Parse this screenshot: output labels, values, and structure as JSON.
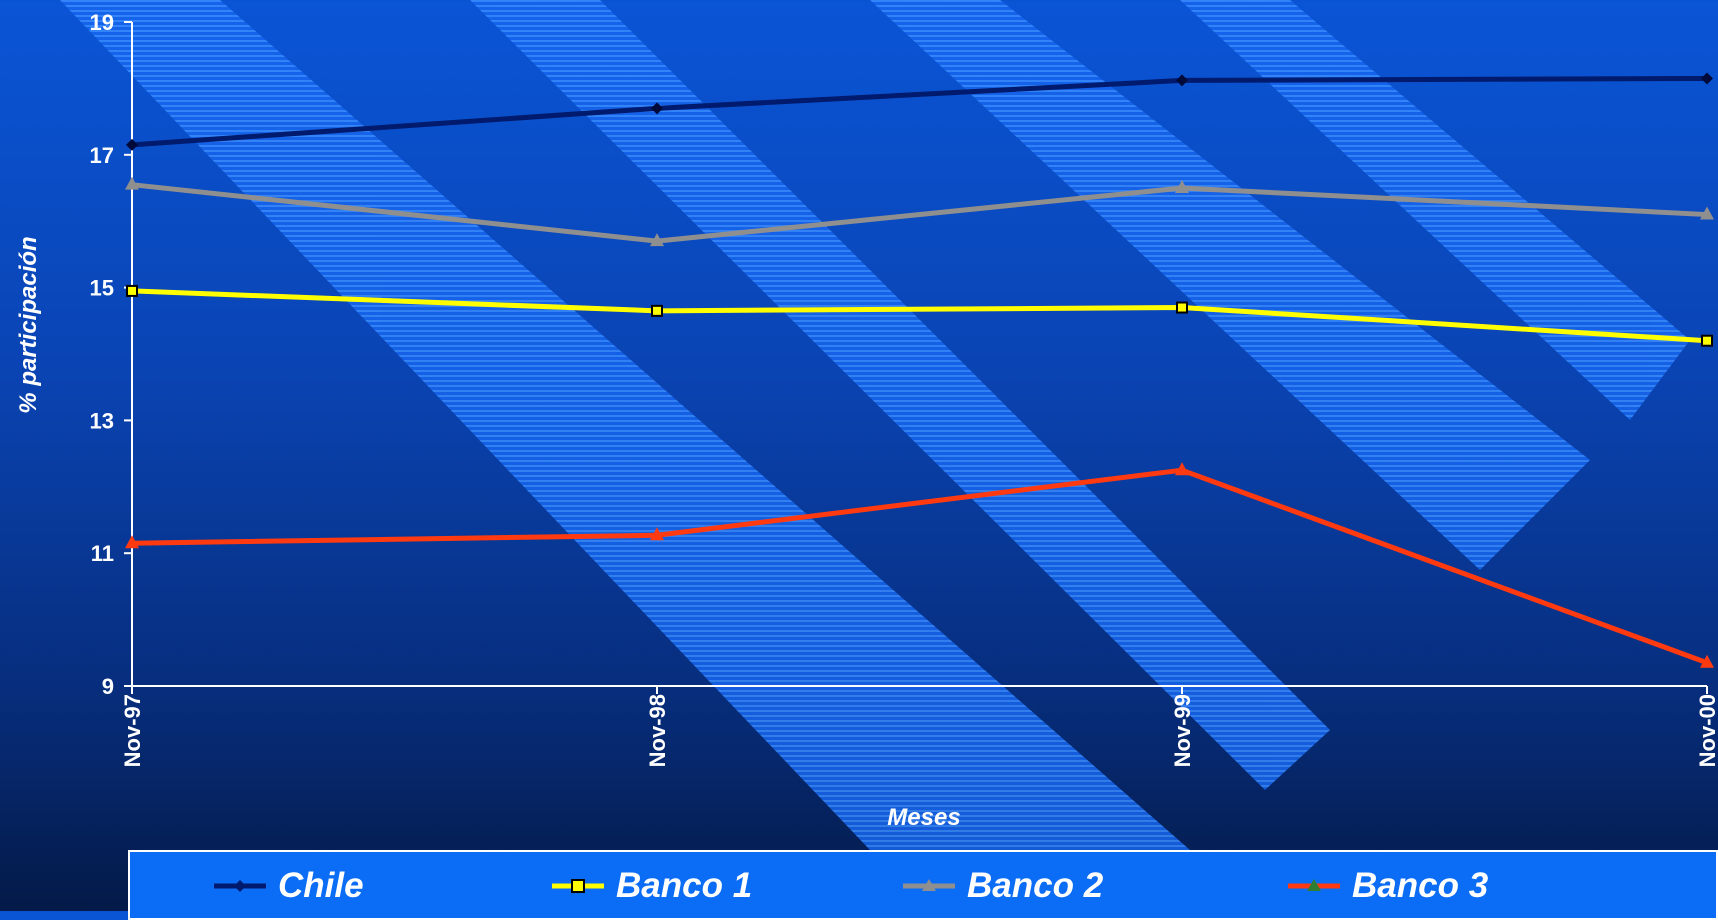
{
  "chart_data": {
    "type": "line",
    "title": "",
    "xlabel": "Meses",
    "ylabel": "% participación",
    "categories": [
      "Nov-97",
      "Nov-98",
      "Nov-99",
      "Nov-00"
    ],
    "ylim": [
      9,
      19
    ],
    "yticks": [
      "9",
      "11",
      "13",
      "15",
      "17",
      "19"
    ],
    "grid": false,
    "legend_position": "bottom",
    "series": [
      {
        "name": "Chile",
        "values": [
          17.15,
          17.7,
          18.12,
          18.15
        ],
        "color": "#001a6e",
        "marker": "diamond"
      },
      {
        "name": "Banco 1",
        "values": [
          14.95,
          14.65,
          14.7,
          14.2
        ],
        "color": "#ffff00",
        "marker": "square"
      },
      {
        "name": "Banco 2",
        "values": [
          16.55,
          15.7,
          16.5,
          16.1
        ],
        "color": "#8f8f8f",
        "marker": "triangle"
      },
      {
        "name": "Banco 3",
        "values": [
          11.15,
          11.27,
          12.25,
          9.35
        ],
        "color": "#ff3a10",
        "marker": "triangle"
      }
    ]
  }
}
